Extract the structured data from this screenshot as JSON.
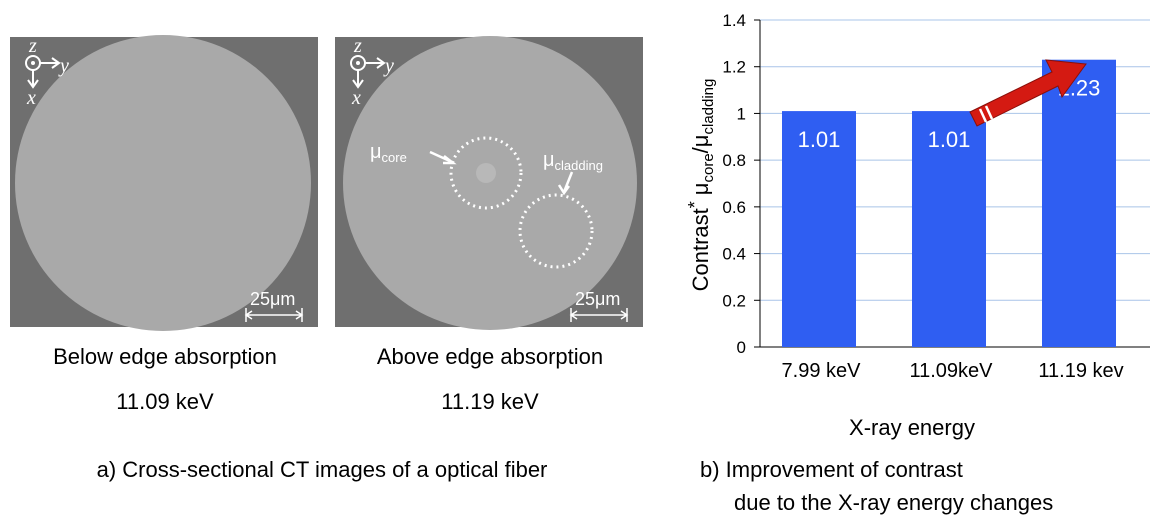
{
  "panel_a": {
    "images": [
      {
        "axes": {
          "z": "z",
          "y": "y",
          "x": "x"
        },
        "scale_bar": "25μm",
        "caption": "Below edge absorption",
        "energy": "11.09 keV"
      },
      {
        "axes": {
          "z": "z",
          "y": "y",
          "x": "x"
        },
        "scale_bar": "25μm",
        "caption": "Above edge absorption",
        "energy": "11.19 keV",
        "core_label": {
          "symbol": "μ",
          "sub": "core"
        },
        "cladding_label": {
          "symbol": "μ",
          "sub": "cladding"
        }
      }
    ],
    "caption": "a) Cross-sectional CT images of a optical fiber"
  },
  "chart_data": {
    "type": "bar",
    "categories": [
      "7.99 keV",
      "11.09keV",
      "11.19 kev"
    ],
    "values": [
      1.01,
      1.01,
      1.23
    ],
    "color": "#2f5ef2",
    "ylim": [
      0,
      1.4
    ],
    "yticks": [
      0,
      0.2,
      0.4,
      0.6,
      0.8,
      1,
      1.2,
      1.4
    ],
    "grid": true,
    "x_label": "X-ray energy",
    "y_label": {
      "main": "Contrast",
      "star": "*",
      "num": "μ",
      "num_sub": "core",
      "sep": "/",
      "den": "μ",
      "den_sub": "cladding"
    }
  },
  "caption_b": [
    "b) Improvement of contrast",
    "due to the X-ray energy changes"
  ]
}
